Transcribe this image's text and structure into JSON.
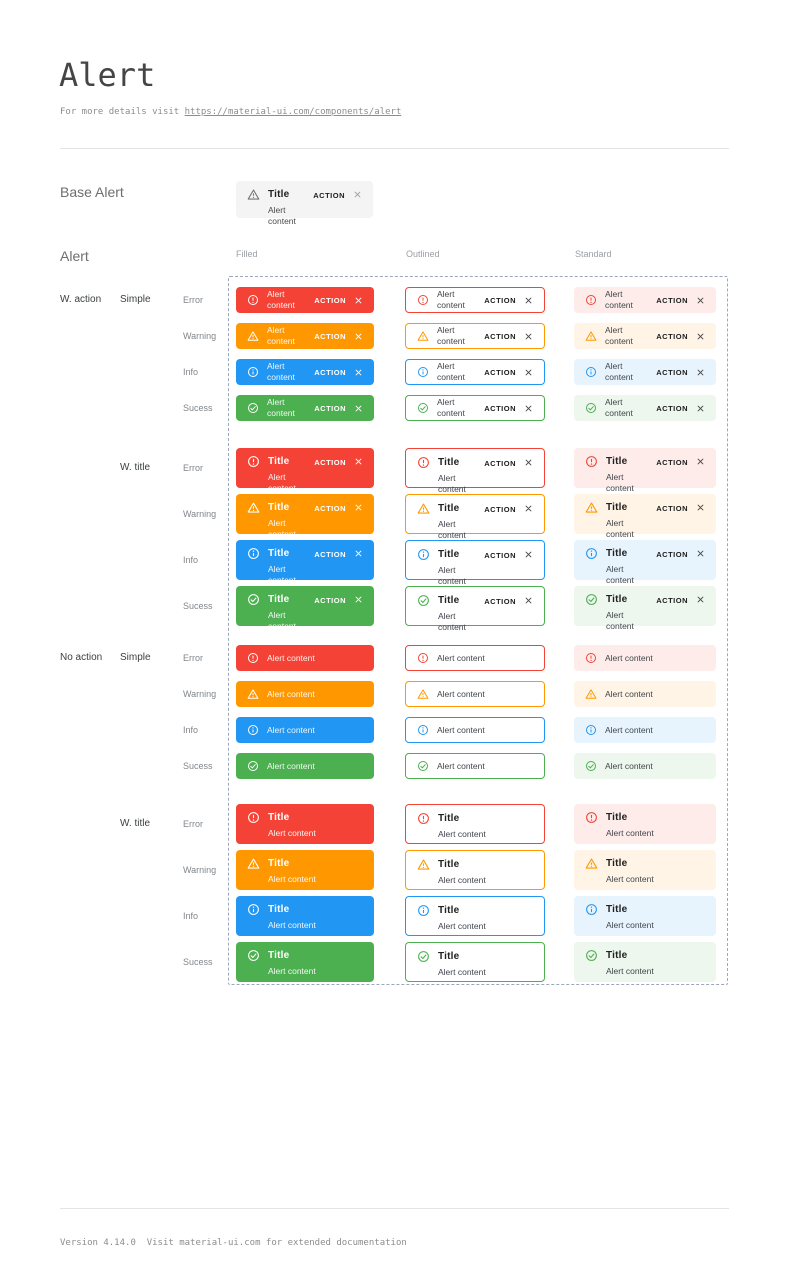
{
  "page": {
    "title": "Alert",
    "subtitle_prefix": "For more details visit ",
    "subtitle_link": "https://material-ui.com/components/alert",
    "footer": "Version 4.14.0  Visit material-ui.com for extended documentation"
  },
  "base_alert": {
    "heading": "Base Alert",
    "title": "Title",
    "content": "Alert content",
    "action": "ACTION",
    "icon": "warning-icon",
    "bg": "#f4f4f4"
  },
  "grid": {
    "heading": "Alert",
    "columns": [
      "Filled",
      "Outlined",
      "Standard"
    ],
    "alert": {
      "title": "Title",
      "content": "Alert content",
      "action": "ACTION"
    },
    "severities": [
      {
        "id": "error",
        "label": "Error",
        "icon": "error-icon",
        "main": "#f44336",
        "standard_bg": "#fdecea"
      },
      {
        "id": "warning",
        "label": "Warning",
        "icon": "warning-icon",
        "main": "#ff9800",
        "standard_bg": "#fff4e5"
      },
      {
        "id": "info",
        "label": "Info",
        "icon": "info-icon",
        "main": "#2196f3",
        "standard_bg": "#e8f4fd"
      },
      {
        "id": "success",
        "label": "Sucess",
        "icon": "success-icon",
        "main": "#4caf50",
        "standard_bg": "#edf7ed"
      }
    ],
    "groups": [
      {
        "label": "W. action",
        "with_action": true,
        "sections": [
          {
            "label": "Simple",
            "with_title": false
          },
          {
            "label": "W. title",
            "with_title": true
          }
        ]
      },
      {
        "label": "No action",
        "with_action": false,
        "sections": [
          {
            "label": "Simple",
            "with_title": false
          },
          {
            "label": "W. title",
            "with_title": true
          }
        ]
      }
    ],
    "dashed_border_color": "#9aa7bd"
  }
}
